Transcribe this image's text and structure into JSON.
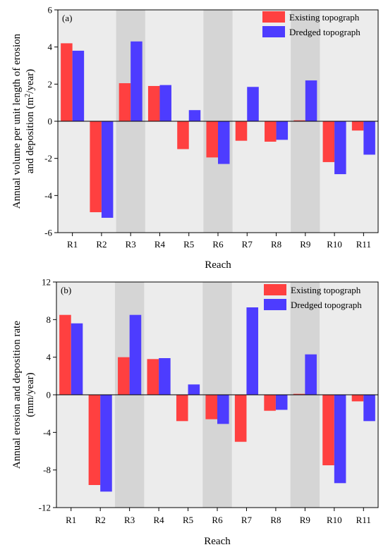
{
  "chart_data": [
    {
      "type": "bar",
      "panel_label": "(a)",
      "categories": [
        "R1",
        "R2",
        "R3",
        "R4",
        "R5",
        "R6",
        "R7",
        "R8",
        "R9",
        "R10",
        "R11"
      ],
      "series": [
        {
          "name": "Existing topograph",
          "color": "#ff4040",
          "values": [
            4.2,
            -4.9,
            2.05,
            1.9,
            -1.5,
            -1.95,
            -1.05,
            -1.1,
            0.05,
            -2.2,
            -0.5
          ]
        },
        {
          "name": "Dredged topograph",
          "color": "#4d3cff",
          "values": [
            3.8,
            -5.2,
            4.3,
            1.95,
            0.6,
            -2.3,
            1.85,
            -1.0,
            2.2,
            -2.85,
            -1.8
          ]
        }
      ],
      "ylabel_lines": [
        "Annual volume per unit length of erosion",
        "and deposition (m²/year)"
      ],
      "xlabel": "Reach",
      "ylim": [
        -6,
        6
      ],
      "yticks": [
        -6,
        -4,
        -2,
        0,
        2,
        4,
        6
      ],
      "shaded_categories": [
        "R3",
        "R6",
        "R9"
      ],
      "legend": "top-right"
    },
    {
      "type": "bar",
      "panel_label": "(b)",
      "categories": [
        "R1",
        "R2",
        "R3",
        "R4",
        "R5",
        "R6",
        "R7",
        "R8",
        "R9",
        "R10",
        "R11"
      ],
      "series": [
        {
          "name": "Existing topograph",
          "color": "#ff4040",
          "values": [
            8.5,
            -9.6,
            4.0,
            3.8,
            -2.8,
            -2.6,
            -5.0,
            -1.7,
            0.1,
            -7.5,
            -0.7
          ]
        },
        {
          "name": "Dredged topograph",
          "color": "#4d3cff",
          "values": [
            7.6,
            -10.3,
            8.5,
            3.9,
            1.1,
            -3.1,
            9.3,
            -1.6,
            4.3,
            -9.4,
            -2.8
          ]
        }
      ],
      "ylabel_lines": [
        "Annual  erosion and deposition rate",
        "(mm/year)"
      ],
      "xlabel": "Reach",
      "ylim": [
        -12,
        12
      ],
      "yticks": [
        -12,
        -8,
        -4,
        0,
        4,
        8,
        12
      ],
      "shaded_categories": [
        "R3",
        "R6",
        "R9"
      ],
      "legend": "top-right"
    }
  ]
}
